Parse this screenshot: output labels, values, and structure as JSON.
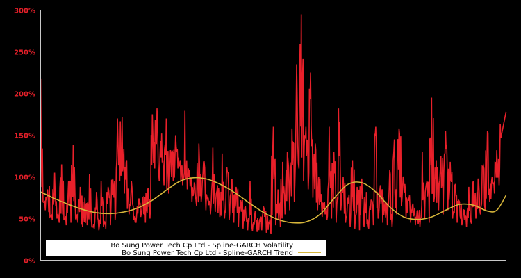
{
  "chart_data": {
    "type": "line",
    "title": "",
    "xlabel": "",
    "ylabel": "",
    "ylim": [
      0,
      300
    ],
    "y_ticks": [
      "0%",
      "50%",
      "100%",
      "150%",
      "200%",
      "250%",
      "300%"
    ],
    "y_tick_values": [
      0,
      50,
      100,
      150,
      200,
      250,
      300
    ],
    "grid": false,
    "legend_position": "lower-left",
    "background": "#000000",
    "series": [
      {
        "name": "Bo Sung Power Tech Cp Ltd - Spline-GARCH Volatility",
        "color": "#e8202a",
        "x_fraction": [
          0.0,
          0.005,
          0.01,
          0.015,
          0.02,
          0.025,
          0.03,
          0.035,
          0.04,
          0.045,
          0.05,
          0.055,
          0.06,
          0.065,
          0.07,
          0.075,
          0.08,
          0.085,
          0.09,
          0.095,
          0.1,
          0.105,
          0.11,
          0.115,
          0.12,
          0.125,
          0.13,
          0.135,
          0.14,
          0.145,
          0.15,
          0.155,
          0.16,
          0.165,
          0.17,
          0.175,
          0.18,
          0.185,
          0.19,
          0.195,
          0.2,
          0.205,
          0.21,
          0.215,
          0.22,
          0.225,
          0.23,
          0.235,
          0.24,
          0.245,
          0.25,
          0.255,
          0.26,
          0.265,
          0.27,
          0.275,
          0.28,
          0.285,
          0.29,
          0.295,
          0.3,
          0.305,
          0.31,
          0.315,
          0.32,
          0.325,
          0.33,
          0.335,
          0.34,
          0.345,
          0.35,
          0.355,
          0.36,
          0.365,
          0.37,
          0.375,
          0.38,
          0.385,
          0.39,
          0.395,
          0.4,
          0.405,
          0.41,
          0.415,
          0.42,
          0.425,
          0.43,
          0.435,
          0.44,
          0.445,
          0.45,
          0.455,
          0.46,
          0.465,
          0.47,
          0.475,
          0.48,
          0.485,
          0.49,
          0.495,
          0.5,
          0.505,
          0.51,
          0.515,
          0.52,
          0.525,
          0.53,
          0.535,
          0.54,
          0.545,
          0.55,
          0.555,
          0.56,
          0.565,
          0.57,
          0.575,
          0.58,
          0.585,
          0.59,
          0.595,
          0.6,
          0.605,
          0.61,
          0.615,
          0.62,
          0.625,
          0.63,
          0.635,
          0.64,
          0.645,
          0.65,
          0.655,
          0.66,
          0.665,
          0.67,
          0.675,
          0.68,
          0.685,
          0.69,
          0.695,
          0.7,
          0.705,
          0.71,
          0.715,
          0.72,
          0.725,
          0.73,
          0.735,
          0.74,
          0.745,
          0.75,
          0.755,
          0.76,
          0.765,
          0.77,
          0.775,
          0.78,
          0.785,
          0.79,
          0.795,
          0.8,
          0.805,
          0.81,
          0.815,
          0.82,
          0.825,
          0.83,
          0.835,
          0.84,
          0.845,
          0.85,
          0.855,
          0.86,
          0.865,
          0.87,
          0.875,
          0.88,
          0.885,
          0.89,
          0.895,
          0.9,
          0.905,
          0.91,
          0.915,
          0.92,
          0.925,
          0.93,
          0.935,
          0.94,
          0.945,
          0.95,
          0.955,
          0.96,
          0.965,
          0.97,
          0.975,
          0.98,
          0.985,
          0.99,
          0.995,
          1.0
        ],
        "values": [
          218,
          70,
          60,
          85,
          52,
          48,
          105,
          50,
          45,
          115,
          48,
          42,
          95,
          45,
          138,
          50,
          45,
          88,
          40,
          75,
          42,
          103,
          40,
          38,
          82,
          36,
          95,
          40,
          38,
          88,
          42,
          98,
          48,
          170,
          95,
          172,
          80,
          120,
          55,
          95,
          48,
          45,
          68,
          52,
          75,
          45,
          85,
          50,
          175,
          110,
          182,
          95,
          152,
          90,
          170,
          80,
          130,
          95,
          150,
          110,
          120,
          90,
          180,
          85,
          108,
          70,
          92,
          65,
          140,
          70,
          118,
          60,
          75,
          55,
          135,
          58,
          90,
          52,
          128,
          50,
          112,
          48,
          95,
          45,
          88,
          40,
          72,
          38,
          65,
          36,
          95,
          35,
          55,
          34,
          48,
          36,
          62,
          33,
          45,
          32,
          160,
          42,
          85,
          40,
          118,
          55,
          130,
          60,
          158,
          70,
          235,
          110,
          295,
          95,
          160,
          85,
          225,
          75,
          140,
          60,
          98,
          52,
          70,
          48,
          160,
          50,
          130,
          45,
          182,
          60,
          100,
          45,
          75,
          40,
          120,
          38,
          88,
          36,
          98,
          40,
          82,
          38,
          72,
          42,
          160,
          50,
          90,
          45,
          70,
          42,
          108,
          40,
          145,
          55,
          158,
          65,
          100,
          50,
          75,
          45,
          68,
          42,
          60,
          40,
          130,
          50,
          95,
          45,
          195,
          70,
          120,
          60,
          125,
          55,
          155,
          60,
          118,
          50,
          90,
          45,
          70,
          42,
          60,
          40,
          88,
          45,
          95,
          50,
          98,
          55,
          112,
          60,
          155,
          70,
          100,
          80,
          132,
          90,
          178
        ]
      },
      {
        "name": "Bo Sung Power Tech Cp Ltd - Spline-GARCH Trend",
        "color": "#d6b53a",
        "x_fraction": [
          0.0,
          0.03,
          0.06,
          0.09,
          0.12,
          0.15,
          0.18,
          0.21,
          0.24,
          0.27,
          0.3,
          0.33,
          0.36,
          0.39,
          0.42,
          0.45,
          0.48,
          0.51,
          0.54,
          0.57,
          0.6,
          0.63,
          0.66,
          0.69,
          0.72,
          0.75,
          0.78,
          0.81,
          0.84,
          0.87,
          0.9,
          0.93,
          0.96,
          0.98,
          1.0
        ],
        "values": [
          82,
          74,
          67,
          61,
          57,
          56,
          58,
          63,
          72,
          84,
          95,
          99,
          97,
          90,
          80,
          68,
          57,
          49,
          45,
          46,
          55,
          74,
          91,
          93,
          82,
          64,
          52,
          49,
          52,
          60,
          67,
          66,
          59,
          60,
          78
        ]
      }
    ]
  },
  "legend": {
    "items": [
      {
        "label": "Bo Sung Power Tech Cp Ltd - Spline-GARCH Volatility",
        "color": "#e8202a"
      },
      {
        "label": "Bo Sung Power Tech Cp Ltd - Spline-GARCH Trend",
        "color": "#d6b53a"
      }
    ]
  }
}
